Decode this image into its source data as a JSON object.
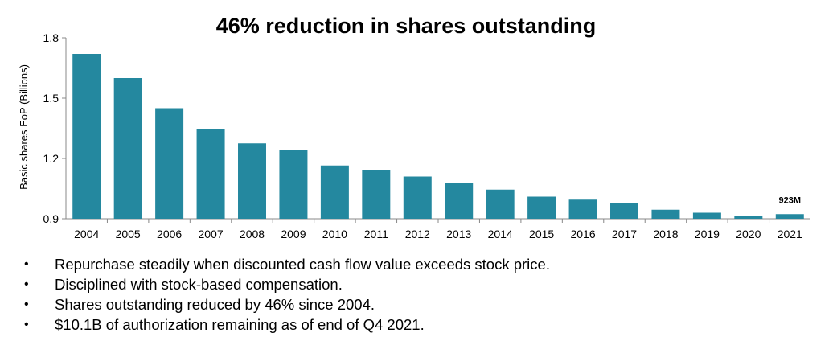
{
  "chart_data": {
    "type": "bar",
    "title": "46% reduction in shares outstanding",
    "ylabel": "Basic shares EoP (Billions)",
    "xlabel": "",
    "ylim": [
      0.9,
      1.8
    ],
    "yticks": [
      "0.9",
      "1.2",
      "1.5",
      "1.8"
    ],
    "categories": [
      "2004",
      "2005",
      "2006",
      "2007",
      "2008",
      "2009",
      "2010",
      "2011",
      "2012",
      "2013",
      "2014",
      "2015",
      "2016",
      "2017",
      "2018",
      "2019",
      "2020",
      "2021"
    ],
    "values": [
      1.72,
      1.6,
      1.45,
      1.345,
      1.275,
      1.24,
      1.165,
      1.14,
      1.11,
      1.08,
      1.045,
      1.01,
      0.995,
      0.98,
      0.945,
      0.93,
      0.915,
      0.923
    ],
    "bar_color": "#24889F",
    "annotation": {
      "category": "2021",
      "label": "923M"
    },
    "grid": false,
    "legend": "none"
  },
  "bullets": [
    "Repurchase steadily when discounted cash flow value exceeds stock price.",
    "Disciplined with stock-based compensation.",
    "Shares outstanding reduced by 46% since 2004.",
    "$10.1B of authorization remaining as of end of Q4 2021."
  ],
  "bullet_marker": "•"
}
